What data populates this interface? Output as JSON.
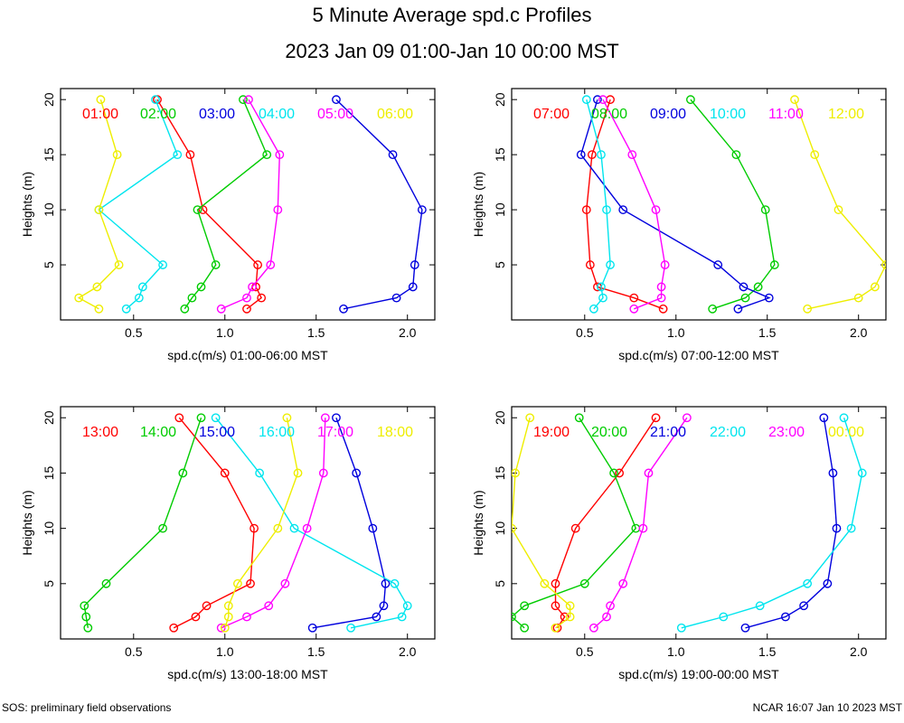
{
  "title": "5 Minute Average spd.c Profiles",
  "subtitle": "2023 Jan 09 01:00-Jan 10 00:00 MST",
  "footer_left": "SOS: preliminary field observations",
  "footer_right": "NCAR 16:07 Jan 10 2023 MST",
  "colors": {
    "red": "#ff0000",
    "green": "#00cc00",
    "blue": "#0000dd",
    "cyan": "#00e5ee",
    "magenta": "#ff00ff",
    "yellow": "#eeee00"
  },
  "chart_data": [
    {
      "type": "line",
      "xlabel": "spd.c(m/s)  01:00-06:00 MST",
      "ylabel": "Heights (m)",
      "xlim": [
        0.1,
        2.15
      ],
      "ylim": [
        0,
        21
      ],
      "xticks": [
        0.5,
        1.0,
        1.5,
        2.0
      ],
      "xtick_labels": [
        "0.5",
        "1.0",
        "1.5",
        "2.0"
      ],
      "yticks": [
        5,
        10,
        15,
        20
      ],
      "ytick_labels": [
        "5",
        "10",
        "15",
        "20"
      ],
      "heights": [
        1,
        2,
        3,
        5,
        10,
        15,
        20
      ],
      "series": [
        {
          "name": "01:00",
          "color": "#ff0000",
          "values": [
            1.12,
            1.2,
            1.17,
            1.18,
            0.88,
            0.81,
            0.63
          ]
        },
        {
          "name": "02:00",
          "color": "#00cc00",
          "values": [
            0.78,
            0.82,
            0.87,
            0.95,
            0.85,
            1.23,
            1.1
          ]
        },
        {
          "name": "03:00",
          "color": "#0000dd",
          "values": [
            1.65,
            1.94,
            2.03,
            2.04,
            2.08,
            1.92,
            1.61
          ]
        },
        {
          "name": "04:00",
          "color": "#00e5ee",
          "values": [
            0.46,
            0.53,
            0.55,
            0.66,
            0.31,
            0.74,
            0.62
          ]
        },
        {
          "name": "05:00",
          "color": "#ff00ff",
          "values": [
            0.98,
            1.12,
            1.15,
            1.25,
            1.29,
            1.3,
            1.13
          ]
        },
        {
          "name": "06:00",
          "color": "#eeee00",
          "values": [
            0.31,
            0.2,
            0.3,
            0.42,
            0.31,
            0.41,
            0.32
          ]
        }
      ]
    },
    {
      "type": "line",
      "xlabel": "spd.c(m/s)  07:00-12:00 MST",
      "ylabel": "Heights (m)",
      "xlim": [
        0.1,
        2.15
      ],
      "ylim": [
        0,
        21
      ],
      "xticks": [
        0.5,
        1.0,
        1.5,
        2.0
      ],
      "xtick_labels": [
        "0.5",
        "1.0",
        "1.5",
        "2.0"
      ],
      "yticks": [
        5,
        10,
        15,
        20
      ],
      "ytick_labels": [
        "5",
        "10",
        "15",
        "20"
      ],
      "heights": [
        1,
        2,
        3,
        5,
        10,
        15,
        20
      ],
      "series": [
        {
          "name": "07:00",
          "color": "#ff0000",
          "values": [
            0.93,
            0.77,
            0.57,
            0.53,
            0.51,
            0.54,
            0.64
          ]
        },
        {
          "name": "08:00",
          "color": "#00cc00",
          "values": [
            1.2,
            1.38,
            1.45,
            1.54,
            1.49,
            1.33,
            1.08
          ]
        },
        {
          "name": "09:00",
          "color": "#0000dd",
          "values": [
            1.34,
            1.51,
            1.37,
            1.23,
            0.71,
            0.48,
            0.57
          ]
        },
        {
          "name": "10:00",
          "color": "#00e5ee",
          "values": [
            0.55,
            0.6,
            0.59,
            0.64,
            0.62,
            0.59,
            0.51
          ]
        },
        {
          "name": "11:00",
          "color": "#ff00ff",
          "values": [
            0.77,
            0.92,
            0.92,
            0.94,
            0.89,
            0.76,
            0.6
          ]
        },
        {
          "name": "12:00",
          "color": "#eeee00",
          "values": [
            1.72,
            2.0,
            2.09,
            2.15,
            1.89,
            1.76,
            1.65
          ]
        }
      ]
    },
    {
      "type": "line",
      "xlabel": "spd.c(m/s)  13:00-18:00 MST",
      "ylabel": "Heights (m)",
      "xlim": [
        0.1,
        2.15
      ],
      "ylim": [
        0,
        21
      ],
      "xticks": [
        0.5,
        1.0,
        1.5,
        2.0
      ],
      "xtick_labels": [
        "0.5",
        "1.0",
        "1.5",
        "2.0"
      ],
      "yticks": [
        5,
        10,
        15,
        20
      ],
      "ytick_labels": [
        "5",
        "10",
        "15",
        "20"
      ],
      "heights": [
        1,
        2,
        3,
        5,
        10,
        15,
        20
      ],
      "series": [
        {
          "name": "13:00",
          "color": "#ff0000",
          "values": [
            0.72,
            0.84,
            0.9,
            1.14,
            1.16,
            1.0,
            0.75
          ]
        },
        {
          "name": "14:00",
          "color": "#00cc00",
          "values": [
            0.25,
            0.24,
            0.23,
            0.35,
            0.66,
            0.77,
            0.87
          ]
        },
        {
          "name": "15:00",
          "color": "#0000dd",
          "values": [
            1.48,
            1.83,
            1.87,
            1.88,
            1.81,
            1.72,
            1.61
          ]
        },
        {
          "name": "16:00",
          "color": "#00e5ee",
          "values": [
            1.69,
            1.97,
            2.0,
            1.93,
            1.38,
            1.19,
            0.95
          ]
        },
        {
          "name": "17:00",
          "color": "#ff00ff",
          "values": [
            0.98,
            1.12,
            1.24,
            1.33,
            1.45,
            1.54,
            1.55
          ]
        },
        {
          "name": "18:00",
          "color": "#eeee00",
          "values": [
            1.0,
            1.02,
            1.02,
            1.07,
            1.29,
            1.4,
            1.34
          ]
        }
      ]
    },
    {
      "type": "line",
      "xlabel": "spd.c(m/s)  19:00-00:00 MST",
      "ylabel": "Heights (m)",
      "xlim": [
        0.1,
        2.15
      ],
      "ylim": [
        0,
        21
      ],
      "xticks": [
        0.5,
        1.0,
        1.5,
        2.0
      ],
      "xtick_labels": [
        "0.5",
        "1.0",
        "1.5",
        "2.0"
      ],
      "yticks": [
        5,
        10,
        15,
        20
      ],
      "ytick_labels": [
        "5",
        "10",
        "15",
        "20"
      ],
      "heights": [
        1,
        2,
        3,
        5,
        10,
        15,
        20
      ],
      "series": [
        {
          "name": "19:00",
          "color": "#ff0000",
          "values": [
            0.35,
            0.39,
            0.34,
            0.34,
            0.45,
            0.69,
            0.89
          ]
        },
        {
          "name": "20:00",
          "color": "#00cc00",
          "values": [
            0.17,
            0.1,
            0.17,
            0.5,
            0.78,
            0.66,
            0.47
          ]
        },
        {
          "name": "21:00",
          "color": "#0000dd",
          "values": [
            1.38,
            1.6,
            1.7,
            1.83,
            1.88,
            1.86,
            1.81
          ]
        },
        {
          "name": "22:00",
          "color": "#00e5ee",
          "values": [
            1.03,
            1.26,
            1.46,
            1.72,
            1.96,
            2.02,
            1.92
          ]
        },
        {
          "name": "23:00",
          "color": "#ff00ff",
          "values": [
            0.55,
            0.62,
            0.64,
            0.71,
            0.82,
            0.85,
            1.06
          ]
        },
        {
          "name": "00:00",
          "color": "#eeee00",
          "values": [
            0.34,
            0.42,
            0.42,
            0.28,
            0.1,
            0.12,
            0.2
          ]
        }
      ]
    }
  ]
}
